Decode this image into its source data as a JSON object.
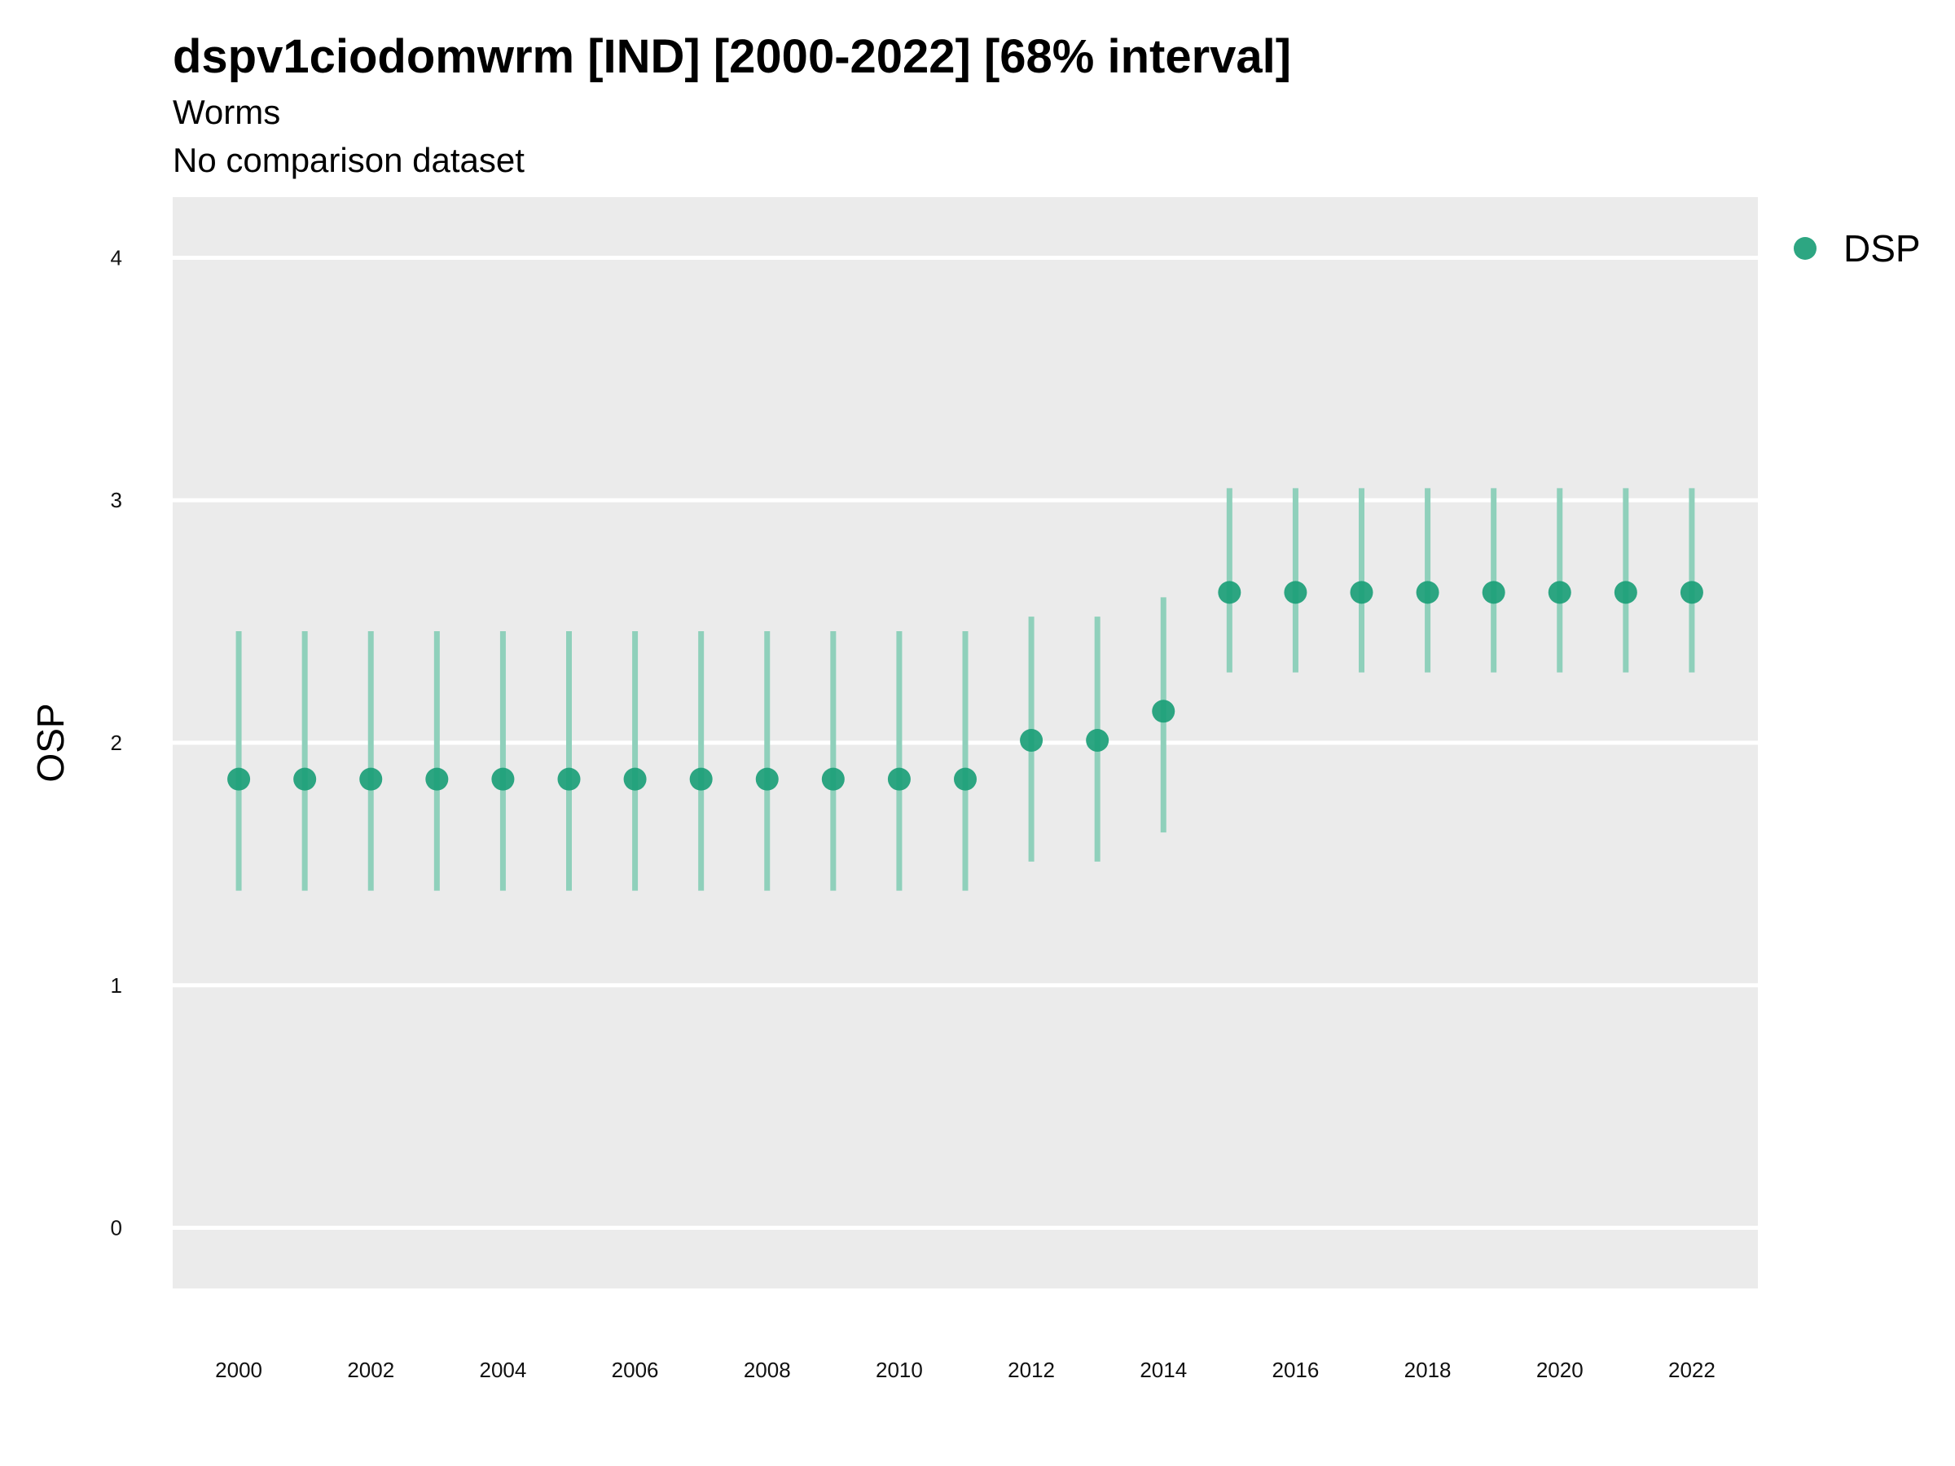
{
  "chart_data": {
    "type": "scatter",
    "title": "dspv1ciodomwrm [IND] [2000-2022] [68% interval]",
    "subtitle": "Worms",
    "caption": "No comparison dataset",
    "xlabel": "",
    "ylabel": "OSP",
    "ylim": [
      -0.25,
      4.25
    ],
    "yticks": [
      "0",
      "1",
      "2",
      "3",
      "4"
    ],
    "xticks": [
      "2000",
      "2002",
      "2004",
      "2006",
      "2008",
      "2010",
      "2012",
      "2014",
      "2016",
      "2018",
      "2020",
      "2022"
    ],
    "grid": true,
    "legend_position": "right",
    "colors": {
      "point": "#1b9e77",
      "interval": "#8fd0bb",
      "panel": "#ebebeb",
      "grid": "#ffffff"
    },
    "series": [
      {
        "name": "DSP",
        "x": [
          2000,
          2001,
          2002,
          2003,
          2004,
          2005,
          2006,
          2007,
          2008,
          2009,
          2010,
          2011,
          2012,
          2013,
          2014,
          2015,
          2016,
          2017,
          2018,
          2019,
          2020,
          2021,
          2022
        ],
        "y": [
          1.85,
          1.85,
          1.85,
          1.85,
          1.85,
          1.85,
          1.85,
          1.85,
          1.85,
          1.85,
          1.85,
          1.85,
          2.01,
          2.01,
          2.13,
          2.62,
          2.62,
          2.62,
          2.62,
          2.62,
          2.62,
          2.62,
          2.62
        ],
        "lower": [
          1.39,
          1.39,
          1.39,
          1.39,
          1.39,
          1.39,
          1.39,
          1.39,
          1.39,
          1.39,
          1.39,
          1.39,
          1.51,
          1.51,
          1.63,
          2.29,
          2.29,
          2.29,
          2.29,
          2.29,
          2.29,
          2.29,
          2.29
        ],
        "upper": [
          2.46,
          2.46,
          2.46,
          2.46,
          2.46,
          2.46,
          2.46,
          2.46,
          2.46,
          2.46,
          2.46,
          2.46,
          2.52,
          2.52,
          2.6,
          3.05,
          3.05,
          3.05,
          3.05,
          3.05,
          3.05,
          3.05,
          3.05
        ]
      }
    ]
  }
}
